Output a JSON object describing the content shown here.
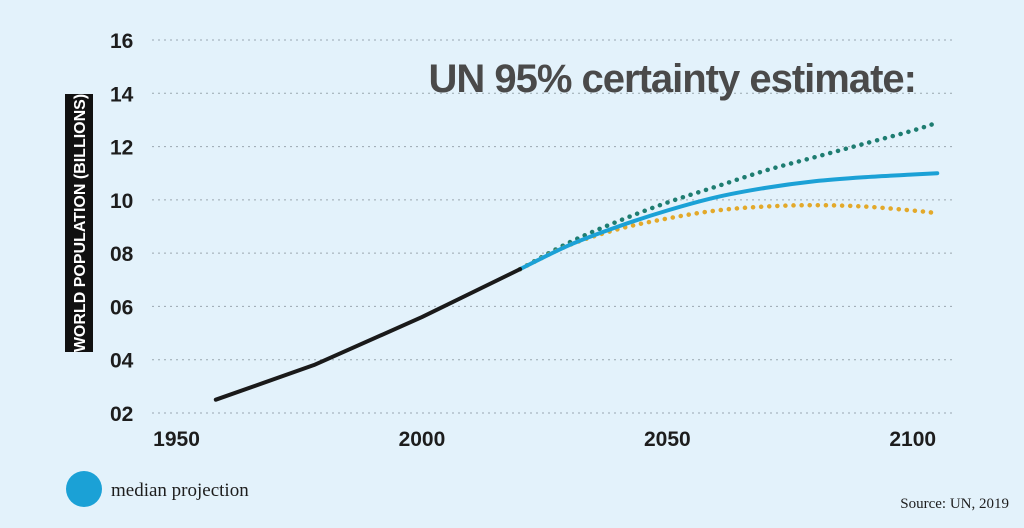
{
  "chart_data": {
    "type": "line",
    "title": "UN 95% certainty estimate:",
    "ylabel": "WORLD POPULATION (BILLIONS)",
    "xlabel": "",
    "xlim": [
      1945,
      2108
    ],
    "ylim": [
      2,
      16
    ],
    "x_ticks": [
      {
        "value": 1950,
        "label": "1950"
      },
      {
        "value": 2000,
        "label": "2000"
      },
      {
        "value": 2050,
        "label": "2050"
      },
      {
        "value": 2100,
        "label": "2100"
      }
    ],
    "y_ticks": [
      {
        "value": 2,
        "label": "02"
      },
      {
        "value": 4,
        "label": "04"
      },
      {
        "value": 6,
        "label": "06"
      },
      {
        "value": 8,
        "label": "08"
      },
      {
        "value": 10,
        "label": "10"
      },
      {
        "value": 12,
        "label": "12"
      },
      {
        "value": 14,
        "label": "14"
      },
      {
        "value": 16,
        "label": "16"
      }
    ],
    "grid": true,
    "series": [
      {
        "key": "historical",
        "color": "#1a1a1a",
        "style": "solid",
        "x": [
          1958,
          1978,
          2000,
          2020
        ],
        "y": [
          2.5,
          3.8,
          5.6,
          7.4
        ]
      },
      {
        "key": "upper",
        "color": "#1e7d71",
        "style": "dotted",
        "x": [
          2020,
          2030,
          2040,
          2050,
          2060,
          2070,
          2080,
          2090,
          2100,
          2105
        ],
        "y": [
          7.4,
          8.4,
          9.2,
          9.9,
          10.5,
          11.1,
          11.6,
          12.1,
          12.6,
          12.9
        ]
      },
      {
        "key": "lower",
        "color": "#e3a92a",
        "style": "dotted",
        "x": [
          2020,
          2030,
          2040,
          2050,
          2060,
          2070,
          2080,
          2090,
          2100,
          2105
        ],
        "y": [
          7.4,
          8.3,
          8.9,
          9.3,
          9.6,
          9.75,
          9.8,
          9.75,
          9.6,
          9.5
        ]
      },
      {
        "name": "median projection",
        "key": "median",
        "color": "#1ba1d6",
        "style": "solid",
        "x": [
          2020,
          2030,
          2040,
          2050,
          2060,
          2070,
          2080,
          2090,
          2100,
          2105
        ],
        "y": [
          7.4,
          8.3,
          9.0,
          9.6,
          10.1,
          10.45,
          10.7,
          10.85,
          10.95,
          11.0
        ]
      }
    ],
    "legend": {
      "placement": "bottom-left",
      "label": "median projection",
      "color": "#1ba1d6"
    },
    "source": "Source: UN, 2019"
  }
}
